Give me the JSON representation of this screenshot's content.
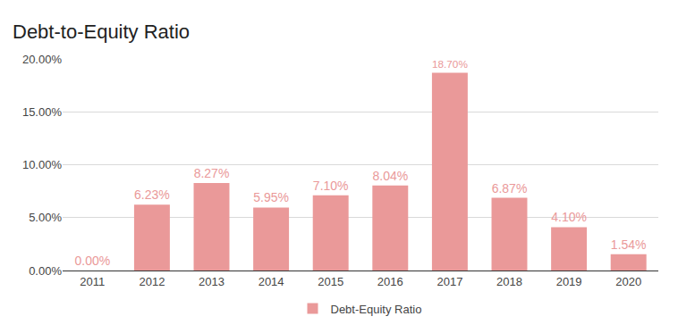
{
  "chart_data": {
    "type": "bar",
    "title": "Debt-to-Equity Ratio",
    "categories": [
      "2011",
      "2012",
      "2013",
      "2014",
      "2015",
      "2016",
      "2017",
      "2018",
      "2019",
      "2020"
    ],
    "series": [
      {
        "name": "Debt-Equity Ratio",
        "color": "#ea9999",
        "values": [
          0,
          6.23,
          8.27,
          5.95,
          7.1,
          8.04,
          18.7,
          6.87,
          4.1,
          1.54
        ],
        "value_labels": [
          "0.00%",
          "6.23%",
          "8.27%",
          "5.95%",
          "7.10%",
          "8.04%",
          "18.70%",
          "6.87%",
          "4.10%",
          "1.54%"
        ]
      }
    ],
    "ylim": [
      0,
      20
    ],
    "yticks": [
      {
        "value": 0,
        "label": "0.00%"
      },
      {
        "value": 5,
        "label": "5.00%"
      },
      {
        "value": 10,
        "label": "10.00%"
      },
      {
        "value": 15,
        "label": "15.00%"
      },
      {
        "value": 20,
        "label": "20.00%"
      }
    ],
    "grid": true,
    "legend": "bottom",
    "data_labels": true
  }
}
